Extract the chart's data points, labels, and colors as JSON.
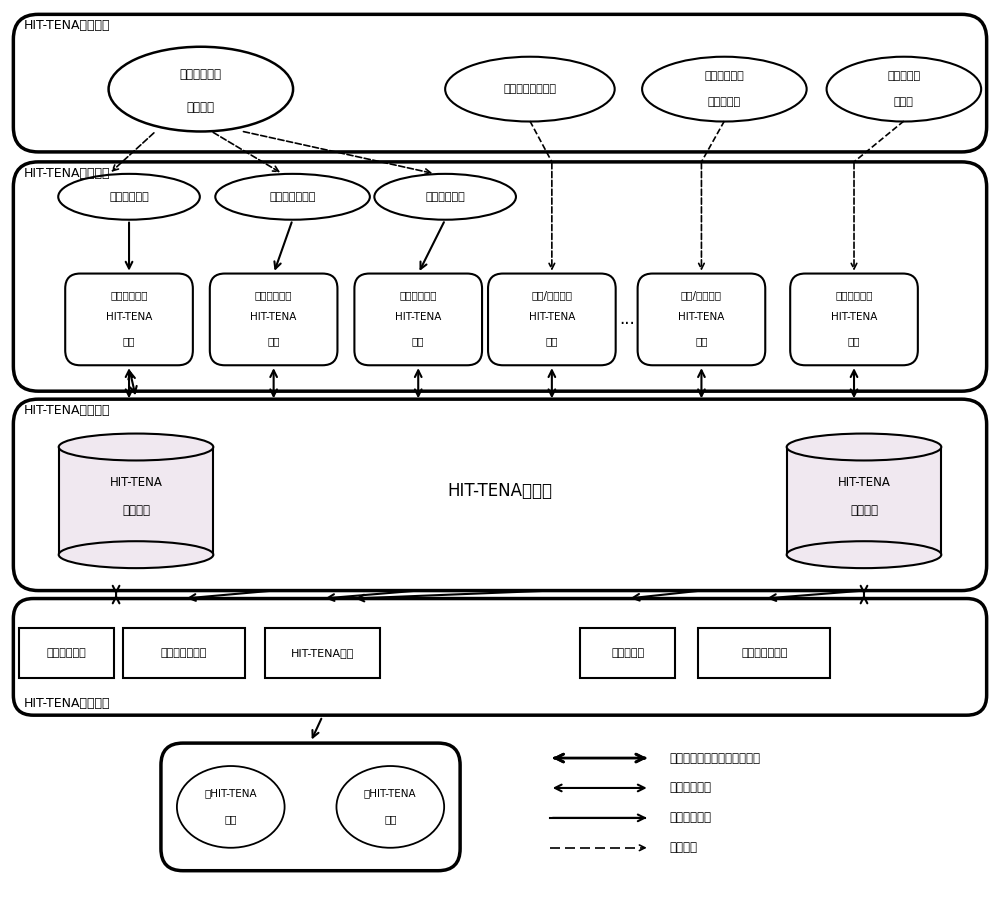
{
  "bg_color": "#ffffff",
  "text_color": "#000000",
  "section_labels": {
    "hit_tena_tools": "HIT-TENA辅助工具",
    "hit_tena_members": "HIT-TENA试验成员",
    "hit_tena_public": "HIT-TENA公共设施",
    "hit_tena_basic": "HIT-TENA基础工具"
  },
  "legend": {
    "msg_arrow": "消息调用传递（基于中间件）",
    "bidir_arrow": "双向数据传输",
    "single_arrow": "单向数据传输",
    "build_process": "构建过程"
  }
}
